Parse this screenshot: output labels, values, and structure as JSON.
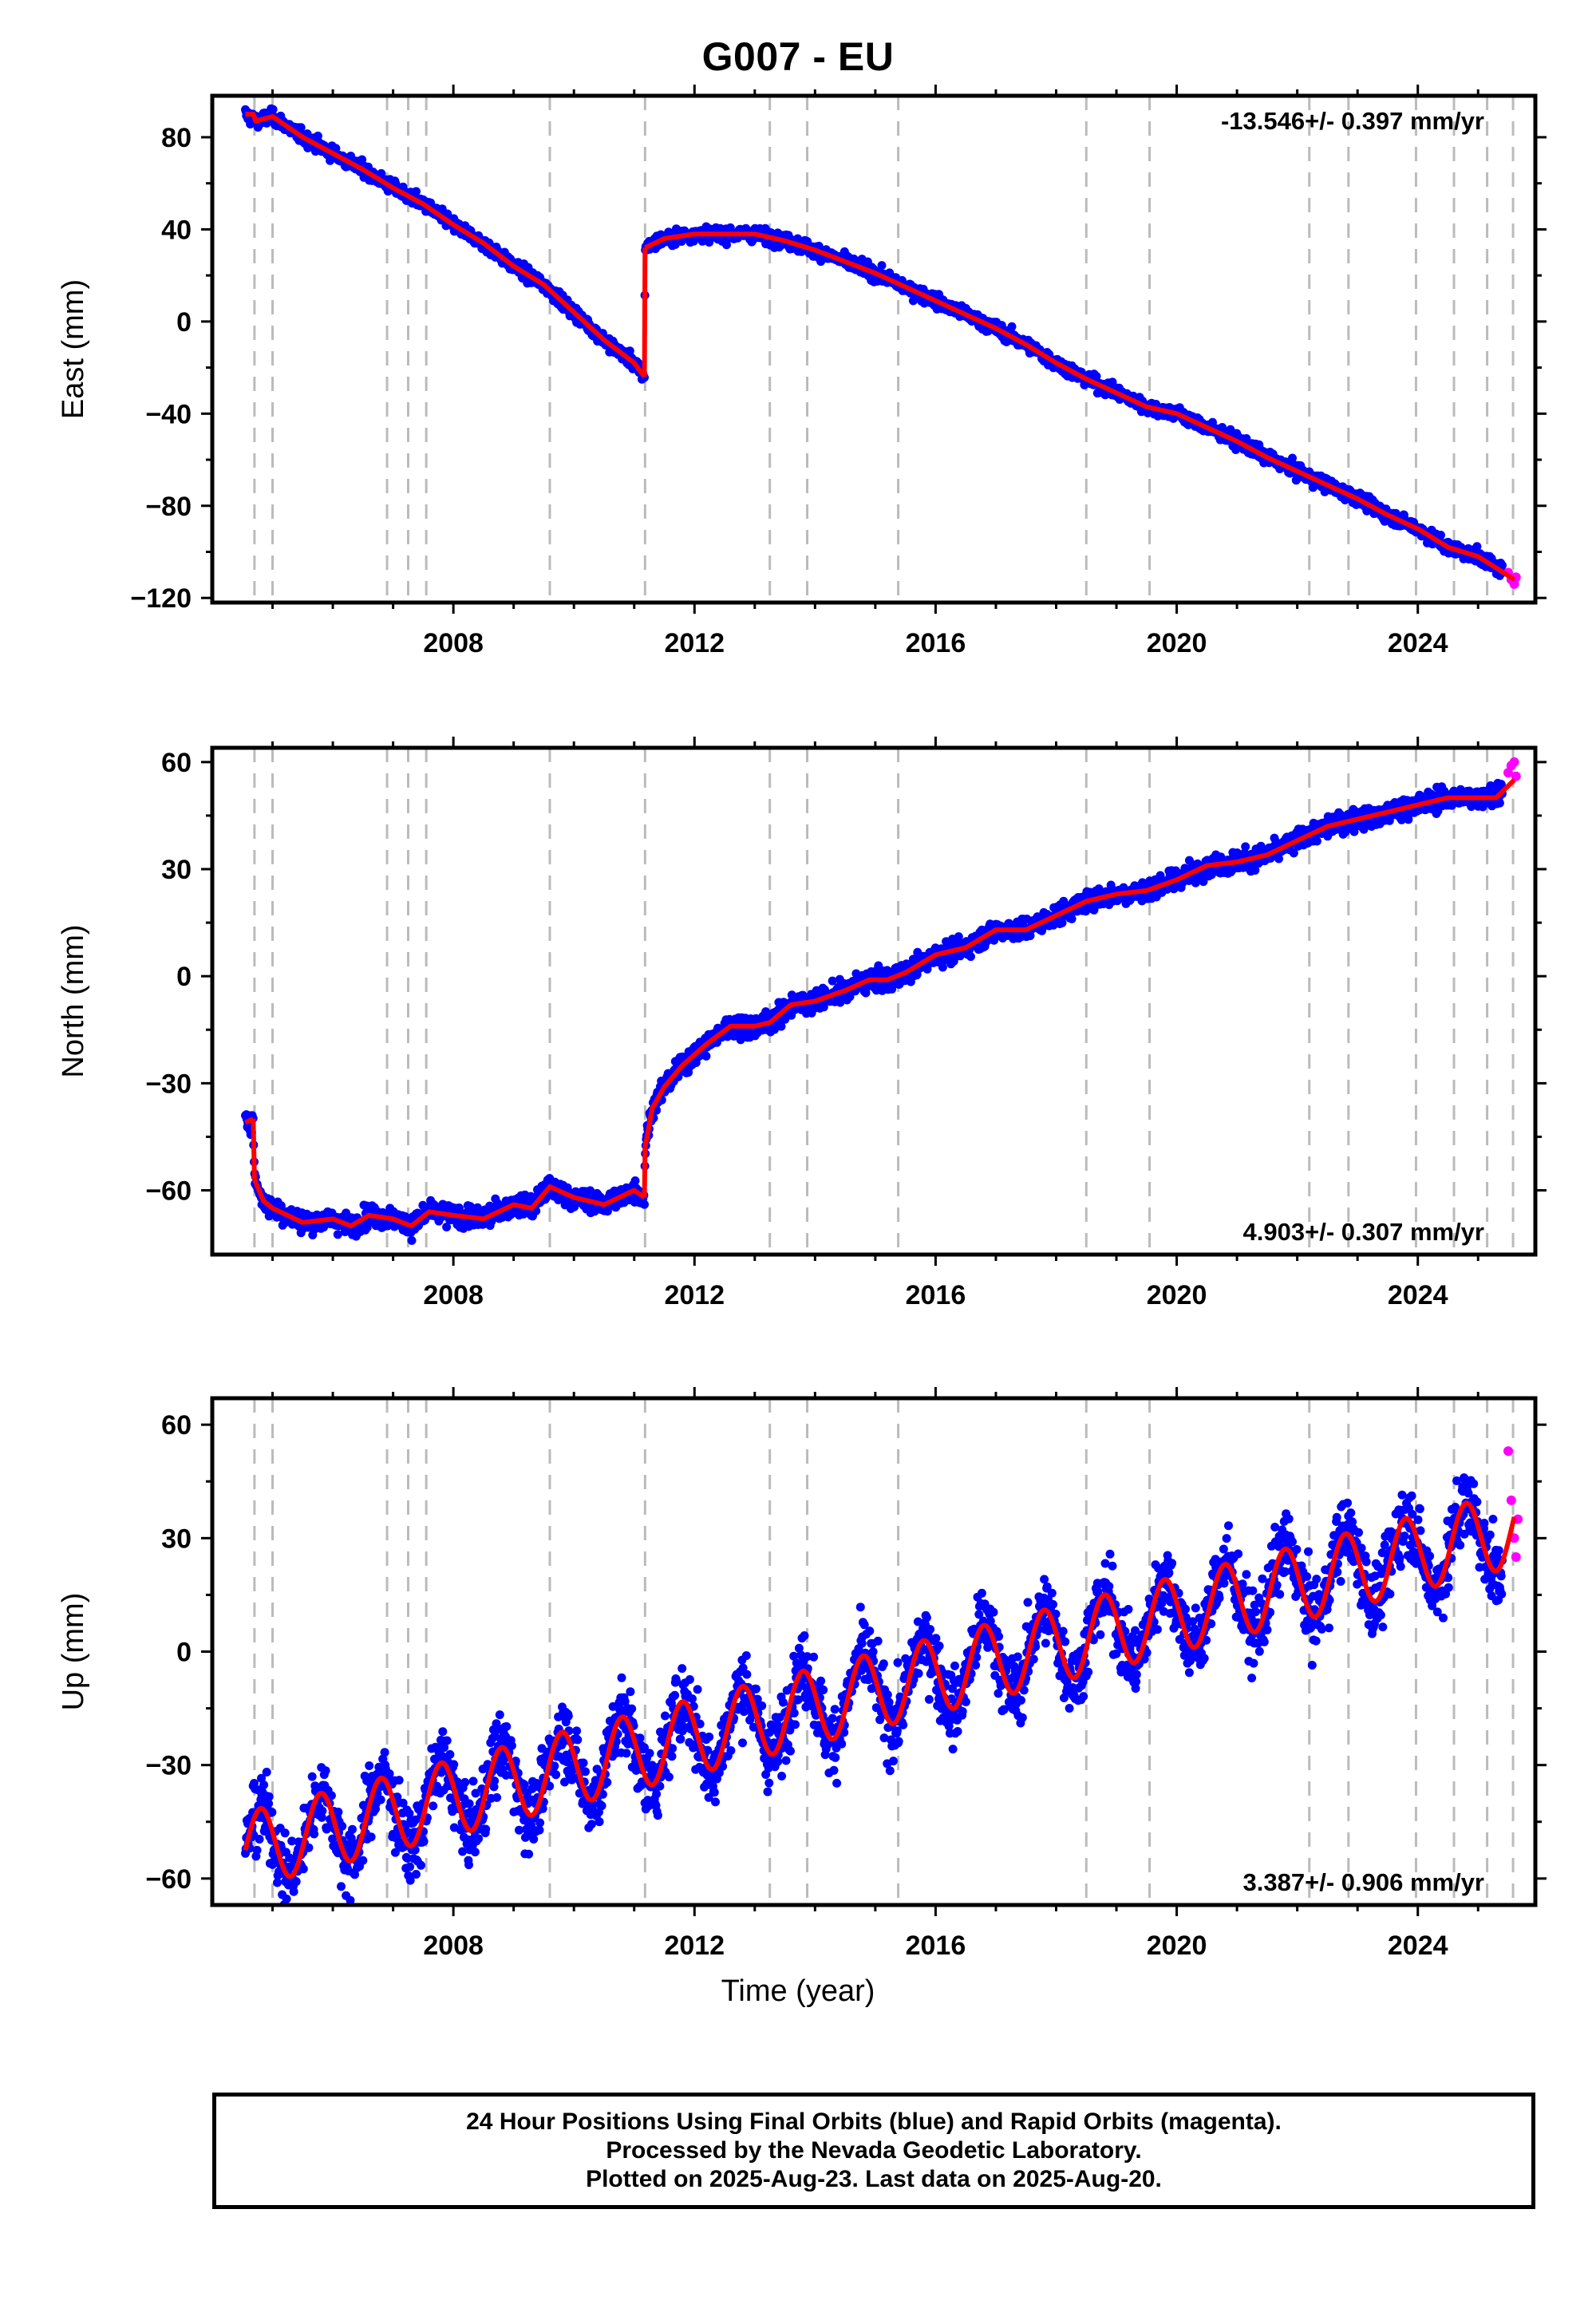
{
  "title": "G007 - EU",
  "colors": {
    "final": "#0000ff",
    "rapid": "#ff00ff",
    "model": "#ff0000",
    "event_line": "#bbbbbb",
    "frame": "#000000"
  },
  "xlabel": "Time (year)",
  "xticks": [
    2008,
    2012,
    2016,
    2020,
    2024
  ],
  "footer": [
    "24 Hour Positions Using Final Orbits (blue) and Rapid Orbits (magenta).",
    "Processed by the Nevada Geodetic Laboratory.",
    "Plotted on 2025-Aug-23. Last data on 2025-Aug-20."
  ],
  "chart_data": [
    {
      "type": "scatter",
      "ylabel": "East (mm)",
      "rate_label": "-13.546+/- 0.397 mm/yr",
      "rate_position": "top-right",
      "xlim": [
        2004.0,
        2025.95
      ],
      "ylim": [
        -122,
        98
      ],
      "yticks": [
        80,
        40,
        0,
        -40,
        -80,
        -120
      ],
      "event_lines": [
        2004.7,
        2005.0,
        2006.9,
        2007.25,
        2007.55,
        2009.6,
        2011.18,
        2013.25,
        2013.87,
        2015.38,
        2018.5,
        2019.55,
        2022.2,
        2022.85,
        2023.97,
        2024.6,
        2025.15,
        2025.58
      ],
      "trend_segments": [
        {
          "x": [
            2004.55,
            2004.68,
            2004.72,
            2005.0,
            2005.5,
            2006.0,
            2006.5,
            2007.0,
            2007.5,
            2008.0,
            2008.5,
            2009.0,
            2009.5,
            2010.0,
            2010.5,
            2011.0,
            2011.17
          ],
          "y": [
            90,
            90,
            87,
            89,
            80,
            73,
            66,
            58,
            51,
            42,
            34,
            24,
            16,
            4,
            -8,
            -18,
            -24
          ]
        },
        {
          "x": [
            2011.18,
            2011.5,
            2012.0,
            2012.5,
            2013.0,
            2013.5,
            2014.0,
            2014.5,
            2015.0,
            2015.5,
            2016.0,
            2016.5,
            2017.0,
            2017.5,
            2018.0,
            2018.5,
            2019.0,
            2019.5,
            2020.0,
            2020.5,
            2021.0,
            2021.5,
            2022.0,
            2022.5,
            2023.0,
            2023.5,
            2024.0,
            2024.5,
            2025.0,
            2025.6
          ],
          "y": [
            32,
            36,
            38,
            38,
            38,
            35,
            31,
            26,
            21,
            15,
            9,
            3,
            -3,
            -10,
            -18,
            -25,
            -31,
            -37,
            -40,
            -46,
            -52,
            -59,
            -65,
            -71,
            -77,
            -84,
            -90,
            -98,
            -102,
            -112
          ]
        }
      ],
      "final_series": {
        "x": [
          2004.55,
          2004.72,
          2005.0,
          2005.5,
          2006.0,
          2006.5,
          2007.0,
          2007.5,
          2008.0,
          2008.5,
          2009.0,
          2009.5,
          2010.0,
          2010.5,
          2011.0,
          2011.17,
          2011.18,
          2011.5,
          2012.0,
          2012.5,
          2013.0,
          2013.5,
          2014.0,
          2014.5,
          2015.0,
          2015.5,
          2016.0,
          2016.5,
          2017.0,
          2017.5,
          2018.0,
          2018.5,
          2019.0,
          2019.5,
          2020.0,
          2020.5,
          2021.0,
          2021.5,
          2022.0,
          2022.5,
          2023.0,
          2023.5,
          2024.0,
          2024.5,
          2025.0,
          2025.4
        ],
        "y": [
          90,
          87,
          89,
          80,
          73,
          66,
          58,
          51,
          42,
          34,
          24,
          16,
          4,
          -8,
          -18,
          -24,
          32,
          36,
          38,
          38,
          38,
          35,
          31,
          26,
          21,
          15,
          9,
          3,
          -3,
          -10,
          -18,
          -25,
          -31,
          -37,
          -40,
          -46,
          -52,
          -59,
          -65,
          -71,
          -77,
          -84,
          -90,
          -98,
          -102,
          -108
        ],
        "noise": 2.5
      },
      "rapid_series": {
        "x": [
          2025.5,
          2025.55,
          2025.6,
          2025.63
        ],
        "y": [
          -109,
          -112,
          -114,
          -111
        ]
      }
    },
    {
      "type": "scatter",
      "ylabel": "North (mm)",
      "rate_label": "4.903+/- 0.307 mm/yr",
      "rate_position": "bottom-right",
      "xlim": [
        2004.0,
        2025.95
      ],
      "ylim": [
        -78,
        64
      ],
      "yticks": [
        60,
        30,
        0,
        -30,
        -60
      ],
      "event_lines": [
        2004.7,
        2005.0,
        2006.9,
        2007.25,
        2007.55,
        2009.6,
        2011.18,
        2013.25,
        2013.87,
        2015.38,
        2018.5,
        2019.55,
        2022.2,
        2022.85,
        2023.97,
        2024.6,
        2025.15,
        2025.58
      ],
      "trend_segments": [
        {
          "x": [
            2004.55,
            2004.68
          ],
          "y": [
            -41,
            -40
          ]
        },
        {
          "x": [
            2004.7,
            2004.85,
            2005.0,
            2005.5,
            2006.0,
            2006.3,
            2006.6,
            2007.0,
            2007.3,
            2007.6,
            2008.0,
            2008.5,
            2009.0,
            2009.3,
            2009.6,
            2010.0,
            2010.5,
            2011.0,
            2011.17
          ],
          "y": [
            -57,
            -63,
            -65,
            -69,
            -68,
            -70,
            -67,
            -68,
            -70,
            -66,
            -67,
            -68,
            -64,
            -65,
            -59,
            -62,
            -64,
            -60,
            -62
          ]
        },
        {
          "x": [
            2011.18,
            2011.3,
            2011.5,
            2011.8,
            2012.2,
            2012.6,
            2013.0,
            2013.25,
            2013.6,
            2014.0,
            2014.5,
            2014.9,
            2015.2,
            2015.5,
            2016.0,
            2016.5,
            2017.0,
            2017.5,
            2018.0,
            2018.5,
            2019.0,
            2019.5,
            2020.0,
            2020.5,
            2021.0,
            2021.5,
            2022.0,
            2022.5,
            2023.0,
            2023.5,
            2024.0,
            2024.5,
            2025.0,
            2025.3,
            2025.6
          ],
          "y": [
            -48,
            -37,
            -31,
            -25,
            -19,
            -14,
            -14,
            -13,
            -8,
            -7,
            -4,
            -1,
            -1,
            1,
            6,
            8,
            13,
            13,
            17,
            21,
            23,
            24,
            27,
            31,
            32,
            34,
            38,
            42,
            44,
            46,
            48,
            50,
            50,
            50,
            55
          ]
        }
      ],
      "final_series": {
        "x": [
          2004.55,
          2004.68,
          2004.7,
          2004.85,
          2005.0,
          2005.5,
          2006.0,
          2006.3,
          2006.6,
          2007.0,
          2007.3,
          2007.6,
          2008.0,
          2008.5,
          2009.0,
          2009.3,
          2009.6,
          2010.0,
          2010.5,
          2011.0,
          2011.17,
          2011.18,
          2011.3,
          2011.5,
          2011.8,
          2012.2,
          2012.6,
          2013.0,
          2013.25,
          2013.6,
          2014.0,
          2014.5,
          2014.9,
          2015.2,
          2015.5,
          2016.0,
          2016.5,
          2017.0,
          2017.5,
          2018.0,
          2018.5,
          2019.0,
          2019.5,
          2020.0,
          2020.5,
          2021.0,
          2021.5,
          2022.0,
          2022.5,
          2023.0,
          2023.5,
          2024.0,
          2024.5,
          2025.0,
          2025.4
        ],
        "y": [
          -41,
          -40,
          -57,
          -63,
          -65,
          -69,
          -68,
          -70,
          -67,
          -68,
          -70,
          -66,
          -67,
          -68,
          -64,
          -65,
          -59,
          -62,
          -64,
          -60,
          -62,
          -48,
          -37,
          -31,
          -25,
          -19,
          -14,
          -14,
          -13,
          -8,
          -7,
          -4,
          -1,
          -1,
          1,
          6,
          8,
          13,
          13,
          17,
          21,
          23,
          24,
          27,
          31,
          32,
          34,
          38,
          42,
          44,
          46,
          48,
          50,
          50,
          52
        ],
        "noise": 2.5
      },
      "rapid_series": {
        "x": [
          2025.5,
          2025.55,
          2025.6,
          2025.63
        ],
        "y": [
          57,
          59,
          60,
          56
        ]
      }
    },
    {
      "type": "scatter",
      "ylabel": "Up (mm)",
      "rate_label": "3.387+/- 0.906 mm/yr",
      "rate_position": "bottom-right",
      "xlim": [
        2004.0,
        2025.95
      ],
      "ylim": [
        -67,
        67
      ],
      "yticks": [
        60,
        30,
        0,
        -30,
        -60
      ],
      "event_lines": [
        2004.7,
        2005.0,
        2006.9,
        2007.25,
        2007.55,
        2009.6,
        2011.18,
        2013.25,
        2013.87,
        2015.38,
        2018.5,
        2019.55,
        2022.2,
        2022.85,
        2023.97,
        2024.6,
        2025.15,
        2025.58
      ],
      "trend_segments": [
        {
          "x": [
            2004.55,
            2025.6
          ],
          "y": [
            -52.5,
            32.5
          ],
          "seasonal_amplitude": 10,
          "seasonal_phase_year": 0.55
        }
      ],
      "final_series": {
        "x": [
          2004.55,
          2025.4
        ],
        "y": [
          -52.5,
          31.7
        ],
        "seasonal_amplitude": 10,
        "seasonal_phase_year": 0.55,
        "noise": 8
      },
      "rapid_series": {
        "x": [
          2025.5,
          2025.55,
          2025.6,
          2025.63,
          2025.66
        ],
        "y": [
          53,
          40,
          30,
          25,
          35
        ]
      }
    }
  ]
}
